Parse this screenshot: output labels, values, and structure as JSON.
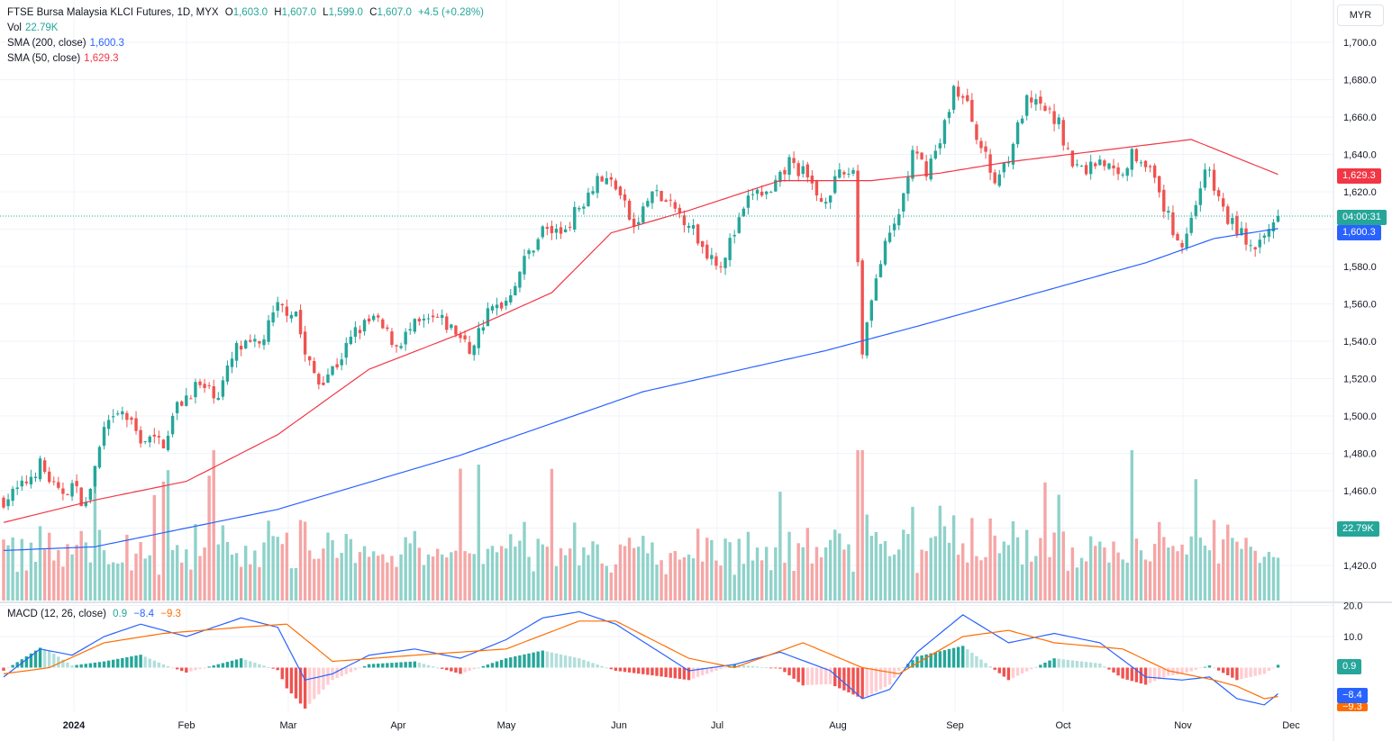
{
  "header": {
    "symbol": "FTSE Bursa Malaysia KLCI Futures, 1D, MYX",
    "o_label": "O",
    "o": "1,603.0",
    "h_label": "H",
    "h": "1,607.0",
    "l_label": "L",
    "l": "1,599.0",
    "c_label": "C",
    "c": "1,607.0",
    "change": "+4.5 (+0.28%)"
  },
  "legend": {
    "vol_label": "Vol",
    "vol_value": "22.79K",
    "sma200_label": "SMA (200, close)",
    "sma200_value": "1,600.3",
    "sma50_label": "SMA (50, close)",
    "sma50_value": "1,629.3",
    "macd_label": "MACD (12, 26, close)",
    "macd_hist": "0.9",
    "macd_line": "−8.4",
    "macd_signal": "−9.3"
  },
  "currency": "MYR",
  "price_labels": {
    "sma50": "1,629.3",
    "countdown": "04:00:31",
    "sma200": "1,600.3",
    "volume": "22.79K",
    "macd_hist": "0.9",
    "macd_line": "−8.4",
    "macd_signal": "−9.3"
  },
  "colors": {
    "up": "#26a69a",
    "down": "#ef5350",
    "up_vol": "#8fd2ca",
    "down_vol": "#f5a6a6",
    "sma50": "#f23645",
    "sma200": "#2962ff",
    "macd": "#2962ff",
    "signal": "#ff6d00",
    "grid": "#f0f3fa",
    "text": "#131722"
  },
  "chart_data": [
    {
      "type": "candlestick",
      "title": "FTSE Bursa Malaysia KLCI Futures, 1D, MYX",
      "x_ticks": [
        "2024",
        "Feb",
        "Mar",
        "Apr",
        "May",
        "Jun",
        "Jul",
        "Aug",
        "Sep",
        "Oct",
        "Nov",
        "Dec"
      ],
      "y_ticks": [
        "1,700.0",
        "1,680.0",
        "1,660.0",
        "1,640.0",
        "1,620.0",
        "1,600.0",
        "1,580.0",
        "1,560.0",
        "1,540.0",
        "1,520.0",
        "1,500.0",
        "1,480.0",
        "1,460.0",
        "1,440.0",
        "1,420.0"
      ],
      "ylim": [
        1410,
        1712
      ],
      "last_price": 1607.0,
      "anchors": [
        [
          0,
          1455
        ],
        [
          4,
          1462
        ],
        [
          8,
          1474
        ],
        [
          12,
          1458
        ],
        [
          15,
          1463
        ],
        [
          18,
          1452
        ],
        [
          22,
          1492
        ],
        [
          26,
          1502
        ],
        [
          30,
          1488
        ],
        [
          35,
          1486
        ],
        [
          38,
          1505
        ],
        [
          42,
          1516
        ],
        [
          47,
          1512
        ],
        [
          51,
          1536
        ],
        [
          56,
          1538
        ],
        [
          60,
          1558
        ],
        [
          64,
          1556
        ],
        [
          66,
          1532
        ],
        [
          69,
          1518
        ],
        [
          73,
          1528
        ],
        [
          77,
          1545
        ],
        [
          81,
          1552
        ],
        [
          86,
          1538
        ],
        [
          90,
          1548
        ],
        [
          95,
          1552
        ],
        [
          99,
          1545
        ],
        [
          102,
          1535
        ],
        [
          106,
          1555
        ],
        [
          110,
          1562
        ],
        [
          114,
          1583
        ],
        [
          118,
          1600
        ],
        [
          122,
          1598
        ],
        [
          126,
          1612
        ],
        [
          130,
          1628
        ],
        [
          134,
          1624
        ],
        [
          138,
          1600
        ],
        [
          142,
          1620
        ],
        [
          146,
          1612
        ],
        [
          150,
          1604
        ],
        [
          153,
          1590
        ],
        [
          157,
          1582
        ],
        [
          160,
          1598
        ],
        [
          164,
          1620
        ],
        [
          168,
          1618
        ],
        [
          172,
          1636
        ],
        [
          175,
          1630
        ],
        [
          179,
          1615
        ],
        [
          183,
          1628
        ],
        [
          186,
          1632
        ],
        [
          188,
          1535
        ],
        [
          190,
          1565
        ],
        [
          193,
          1590
        ],
        [
          196,
          1608
        ],
        [
          199,
          1640
        ],
        [
          202,
          1632
        ],
        [
          205,
          1646
        ],
        [
          208,
          1676
        ],
        [
          211,
          1666
        ],
        [
          214,
          1644
        ],
        [
          217,
          1625
        ],
        [
          220,
          1640
        ],
        [
          224,
          1668
        ],
        [
          228,
          1664
        ],
        [
          231,
          1656
        ],
        [
          234,
          1634
        ],
        [
          237,
          1632
        ],
        [
          240,
          1638
        ],
        [
          244,
          1628
        ],
        [
          247,
          1640
        ],
        [
          250,
          1637
        ],
        [
          253,
          1618
        ],
        [
          256,
          1600
        ],
        [
          258,
          1592
        ],
        [
          260,
          1605
        ],
        [
          263,
          1634
        ],
        [
          265,
          1622
        ],
        [
          268,
          1605
        ],
        [
          271,
          1598
        ],
        [
          274,
          1586
        ],
        [
          277,
          1600
        ],
        [
          279,
          1607
        ]
      ],
      "volume_max_k": 80,
      "last_volume": "22.79K",
      "sma200_anchors": [
        [
          0,
          1428
        ],
        [
          20,
          1430
        ],
        [
          60,
          1450
        ],
        [
          100,
          1479
        ],
        [
          140,
          1513
        ],
        [
          180,
          1535
        ],
        [
          200,
          1548
        ],
        [
          225,
          1565
        ],
        [
          250,
          1582
        ],
        [
          265,
          1595
        ],
        [
          279,
          1600.3
        ]
      ],
      "sma50_anchors": [
        [
          0,
          1443
        ],
        [
          20,
          1455
        ],
        [
          40,
          1465
        ],
        [
          60,
          1490
        ],
        [
          80,
          1525
        ],
        [
          100,
          1544
        ],
        [
          120,
          1566
        ],
        [
          133,
          1598
        ],
        [
          150,
          1610
        ],
        [
          170,
          1626
        ],
        [
          190,
          1626
        ],
        [
          205,
          1630
        ],
        [
          220,
          1636
        ],
        [
          240,
          1642
        ],
        [
          260,
          1648
        ],
        [
          279,
          1629.3
        ]
      ]
    },
    {
      "type": "line",
      "title": "MACD (12, 26, close)",
      "y_ticks": [
        "20.0",
        "10.0"
      ],
      "ylim": [
        -17,
        22
      ],
      "macd_anchors": [
        [
          0,
          -3
        ],
        [
          8,
          6
        ],
        [
          15,
          4
        ],
        [
          22,
          10
        ],
        [
          30,
          14
        ],
        [
          40,
          10
        ],
        [
          52,
          16
        ],
        [
          60,
          13
        ],
        [
          66,
          -4
        ],
        [
          72,
          -2
        ],
        [
          80,
          4
        ],
        [
          90,
          6
        ],
        [
          100,
          3
        ],
        [
          110,
          9
        ],
        [
          118,
          16
        ],
        [
          126,
          18
        ],
        [
          134,
          14
        ],
        [
          150,
          -1
        ],
        [
          160,
          1
        ],
        [
          170,
          5
        ],
        [
          181,
          -1
        ],
        [
          188,
          -10
        ],
        [
          194,
          -7
        ],
        [
          200,
          5
        ],
        [
          210,
          17
        ],
        [
          220,
          8
        ],
        [
          230,
          11
        ],
        [
          240,
          8
        ],
        [
          250,
          -3
        ],
        [
          258,
          -4
        ],
        [
          264,
          -3
        ],
        [
          270,
          -10
        ],
        [
          276,
          -12
        ],
        [
          279,
          -8.4
        ]
      ],
      "signal_anchors": [
        [
          0,
          -2
        ],
        [
          10,
          0
        ],
        [
          22,
          8
        ],
        [
          35,
          11
        ],
        [
          52,
          13
        ],
        [
          62,
          14
        ],
        [
          72,
          2
        ],
        [
          90,
          4
        ],
        [
          110,
          6
        ],
        [
          126,
          15
        ],
        [
          134,
          15
        ],
        [
          150,
          3
        ],
        [
          160,
          0
        ],
        [
          175,
          8
        ],
        [
          188,
          0
        ],
        [
          196,
          -2
        ],
        [
          210,
          10
        ],
        [
          220,
          12
        ],
        [
          230,
          8
        ],
        [
          245,
          6
        ],
        [
          255,
          -1
        ],
        [
          265,
          -4
        ],
        [
          270,
          -6
        ],
        [
          276,
          -10
        ],
        [
          279,
          -9.3
        ]
      ],
      "histogram_last": 0.9
    }
  ]
}
